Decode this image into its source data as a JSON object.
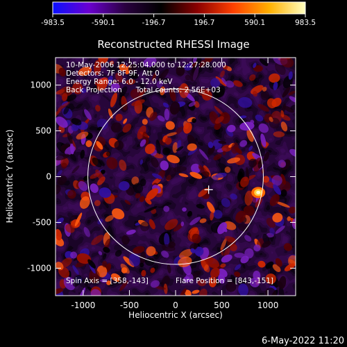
{
  "colorbar": {
    "ticks": [
      "-983.5",
      "-590.1",
      "-196.7",
      "196.7",
      "590.1",
      "983.5"
    ],
    "gradient": [
      "#0a10ff",
      "#6a00d0",
      "#2a0040",
      "#000000",
      "#8a0000",
      "#ff4000",
      "#ffb000",
      "#ffffc0"
    ]
  },
  "plot": {
    "title": "Reconstructed RHESSI Image",
    "info": [
      "10-May-2006 12:25:04.000 to 12:27:28.000",
      "Detectors: 7F 8F 9F, Att 0",
      "Energy Range: 6.0 - 12.0 keV",
      "Back Projection      Total counts: 2.56E+03"
    ],
    "spin_axis": "Spin Axis = [358,-143]",
    "flare_position": "Flare Position = [843,-151]",
    "xlabel": "Heliocentric X (arcsec)",
    "ylabel": "Heliocentric Y (arcsec)",
    "xticks": [
      "-1000",
      "-500",
      "0",
      "500",
      "1000"
    ],
    "yticks": [
      "1000",
      "500",
      "0",
      "-500",
      "-1000"
    ],
    "xtick_values": [
      -1000,
      -500,
      0,
      500,
      1000
    ],
    "ytick_values": [
      1000,
      500,
      0,
      -500,
      -1000
    ],
    "xlim": [
      -1300,
      1300
    ],
    "ylim": [
      -1300,
      1300
    ],
    "solar_radius": 950,
    "spin_axis_xy": [
      358,
      -143
    ],
    "flare_xy": [
      843,
      -151
    ]
  },
  "footer": {
    "datetime": "6-May-2022 11:20"
  }
}
